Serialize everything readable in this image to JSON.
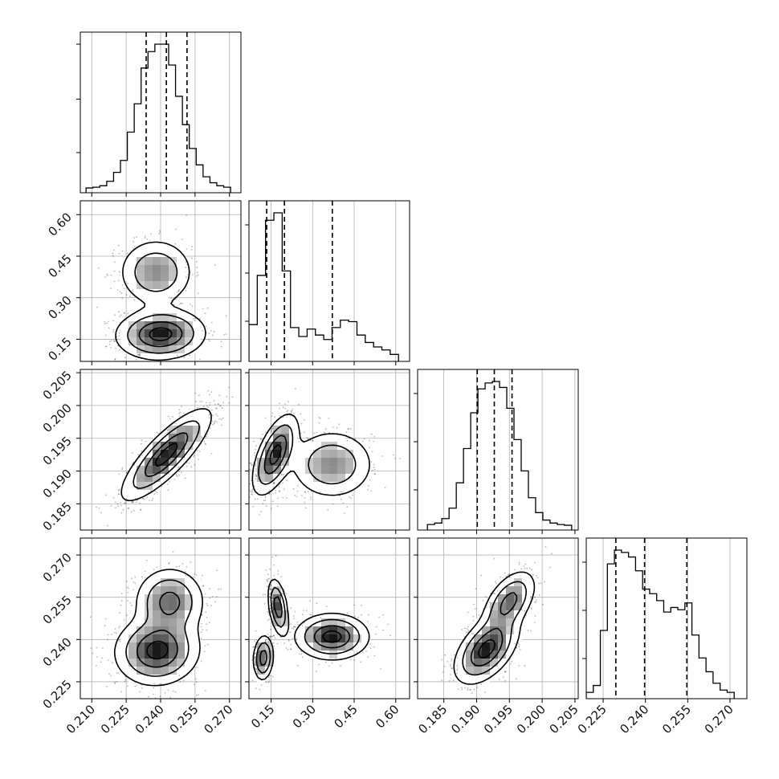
{
  "chart_data": {
    "type": "corner",
    "title": "",
    "parameters": [
      "",
      "",
      "",
      ""
    ],
    "grid": true,
    "quantiles": [
      0.16,
      0.5,
      0.84
    ],
    "ranges": [
      [
        0.205,
        0.275
      ],
      [
        0.07,
        0.65
      ],
      [
        0.181,
        0.2055
      ],
      [
        0.219,
        0.276
      ]
    ],
    "tick_labels": {
      "p0": [
        "0.210",
        "0.225",
        "0.240",
        "0.255",
        "0.270"
      ],
      "p1": [
        "0.15",
        "0.30",
        "0.45",
        "0.60"
      ],
      "p2": [
        "0.185",
        "0.190",
        "0.195",
        "0.200",
        "0.205"
      ],
      "p3": [
        "0.225",
        "0.240",
        "0.255",
        "0.270"
      ]
    },
    "marginals": [
      {
        "param": 0,
        "bin_edges": [
          0.2075,
          0.2105,
          0.2135,
          0.2165,
          0.2195,
          0.2225,
          0.2255,
          0.2285,
          0.2315,
          0.2345,
          0.2375,
          0.2405,
          0.2435,
          0.2465,
          0.2495,
          0.2525,
          0.2555,
          0.2585,
          0.2615,
          0.2645,
          0.2675,
          0.2705
        ],
        "counts": [
          0.5,
          1,
          2,
          5,
          11,
          19,
          38,
          57,
          81,
          92,
          97,
          97,
          83,
          62,
          43,
          27,
          16,
          8,
          4,
          2,
          1
        ],
        "quantile_values": [
          0.2337,
          0.2425,
          0.2515
        ]
      },
      {
        "param": 1,
        "bin_edges": [
          0.07,
          0.1,
          0.13,
          0.16,
          0.19,
          0.22,
          0.25,
          0.28,
          0.31,
          0.34,
          0.37,
          0.4,
          0.43,
          0.46,
          0.49,
          0.52,
          0.55,
          0.58,
          0.61
        ],
        "counts": [
          22,
          55,
          92,
          97,
          58,
          20,
          14,
          19,
          15,
          12,
          20,
          25,
          24,
          15,
          10,
          7,
          5,
          2
        ],
        "quantile_values": [
          0.134,
          0.198,
          0.371
        ]
      },
      {
        "param": 2,
        "bin_edges": [
          0.1825,
          0.1836,
          0.1847,
          0.1858,
          0.1869,
          0.188,
          0.1891,
          0.1902,
          0.1913,
          0.1924,
          0.1935,
          0.1946,
          0.1957,
          0.1968,
          0.1979,
          0.199,
          0.2001,
          0.2012,
          0.2023,
          0.2034,
          0.2045
        ],
        "counts": [
          1,
          2,
          5,
          12,
          29,
          52,
          76,
          92,
          96,
          97,
          93,
          79,
          58,
          37,
          19,
          9,
          4,
          2,
          1,
          0.5
        ],
        "quantile_values": [
          0.1901,
          0.1927,
          0.1954
        ]
      },
      {
        "param": 3,
        "bin_edges": [
          0.219,
          0.2215,
          0.224,
          0.2265,
          0.229,
          0.2315,
          0.234,
          0.2365,
          0.239,
          0.2415,
          0.244,
          0.2465,
          0.249,
          0.2515,
          0.254,
          0.2565,
          0.259,
          0.2615,
          0.264,
          0.2665,
          0.269,
          0.2715
        ],
        "counts": [
          1,
          4,
          28,
          57,
          63,
          62,
          60,
          54,
          46,
          44,
          41,
          36,
          38,
          37,
          40,
          26,
          16,
          10,
          5,
          2,
          1
        ],
        "quantile_values": [
          0.2295,
          0.2397,
          0.2547
        ]
      }
    ],
    "joint_modes": [
      {
        "x_param": 0,
        "y_param": 1,
        "modes": [
          {
            "mean": [
              0.24,
              0.168
            ],
            "sd": [
              0.0095,
              0.045
            ],
            "corr": 0.05,
            "w": 0.62
          },
          {
            "mean": [
              0.238,
              0.392
            ],
            "sd": [
              0.008,
              0.06
            ],
            "corr": 0.0,
            "w": 0.38
          }
        ]
      },
      {
        "x_param": 0,
        "y_param": 2,
        "modes": [
          {
            "mean": [
              0.2425,
              0.1925
            ],
            "sd": [
              0.0095,
              0.0034
            ],
            "corr": 0.82,
            "w": 1.0
          }
        ]
      },
      {
        "x_param": 1,
        "y_param": 2,
        "modes": [
          {
            "mean": [
              0.165,
              0.1925
            ],
            "sd": [
              0.04,
              0.003
            ],
            "corr": 0.6,
            "w": 0.62
          },
          {
            "mean": [
              0.37,
              0.191
            ],
            "sd": [
              0.075,
              0.0026
            ],
            "corr": 0.0,
            "w": 0.38
          }
        ]
      },
      {
        "x_param": 0,
        "y_param": 3,
        "modes": [
          {
            "mean": [
              0.2385,
              0.236
            ],
            "sd": [
              0.009,
              0.006
            ],
            "corr": 0.05,
            "w": 0.58
          },
          {
            "mean": [
              0.244,
              0.2535
            ],
            "sd": [
              0.0075,
              0.006
            ],
            "corr": 0.0,
            "w": 0.42
          }
        ]
      },
      {
        "x_param": 1,
        "y_param": 3,
        "modes": [
          {
            "mean": [
              0.122,
              0.2335
            ],
            "sd": [
              0.018,
              0.004
            ],
            "corr": 0.1,
            "w": 0.3
          },
          {
            "mean": [
              0.175,
              0.2515
            ],
            "sd": [
              0.018,
              0.005
            ],
            "corr": -0.4,
            "w": 0.32
          },
          {
            "mean": [
              0.37,
              0.241
            ],
            "sd": [
              0.065,
              0.004
            ],
            "corr": 0.0,
            "w": 0.38
          }
        ]
      },
      {
        "x_param": 2,
        "y_param": 3,
        "modes": [
          {
            "mean": [
              0.1915,
              0.2365
            ],
            "sd": [
              0.0024,
              0.006
            ],
            "corr": 0.5,
            "w": 0.58
          },
          {
            "mean": [
              0.195,
              0.2535
            ],
            "sd": [
              0.002,
              0.0055
            ],
            "corr": 0.5,
            "w": 0.42
          }
        ]
      }
    ],
    "contour_levels": [
      0.12,
      0.32,
      0.62,
      0.88
    ],
    "sample_dots_per_panel": 1400
  }
}
